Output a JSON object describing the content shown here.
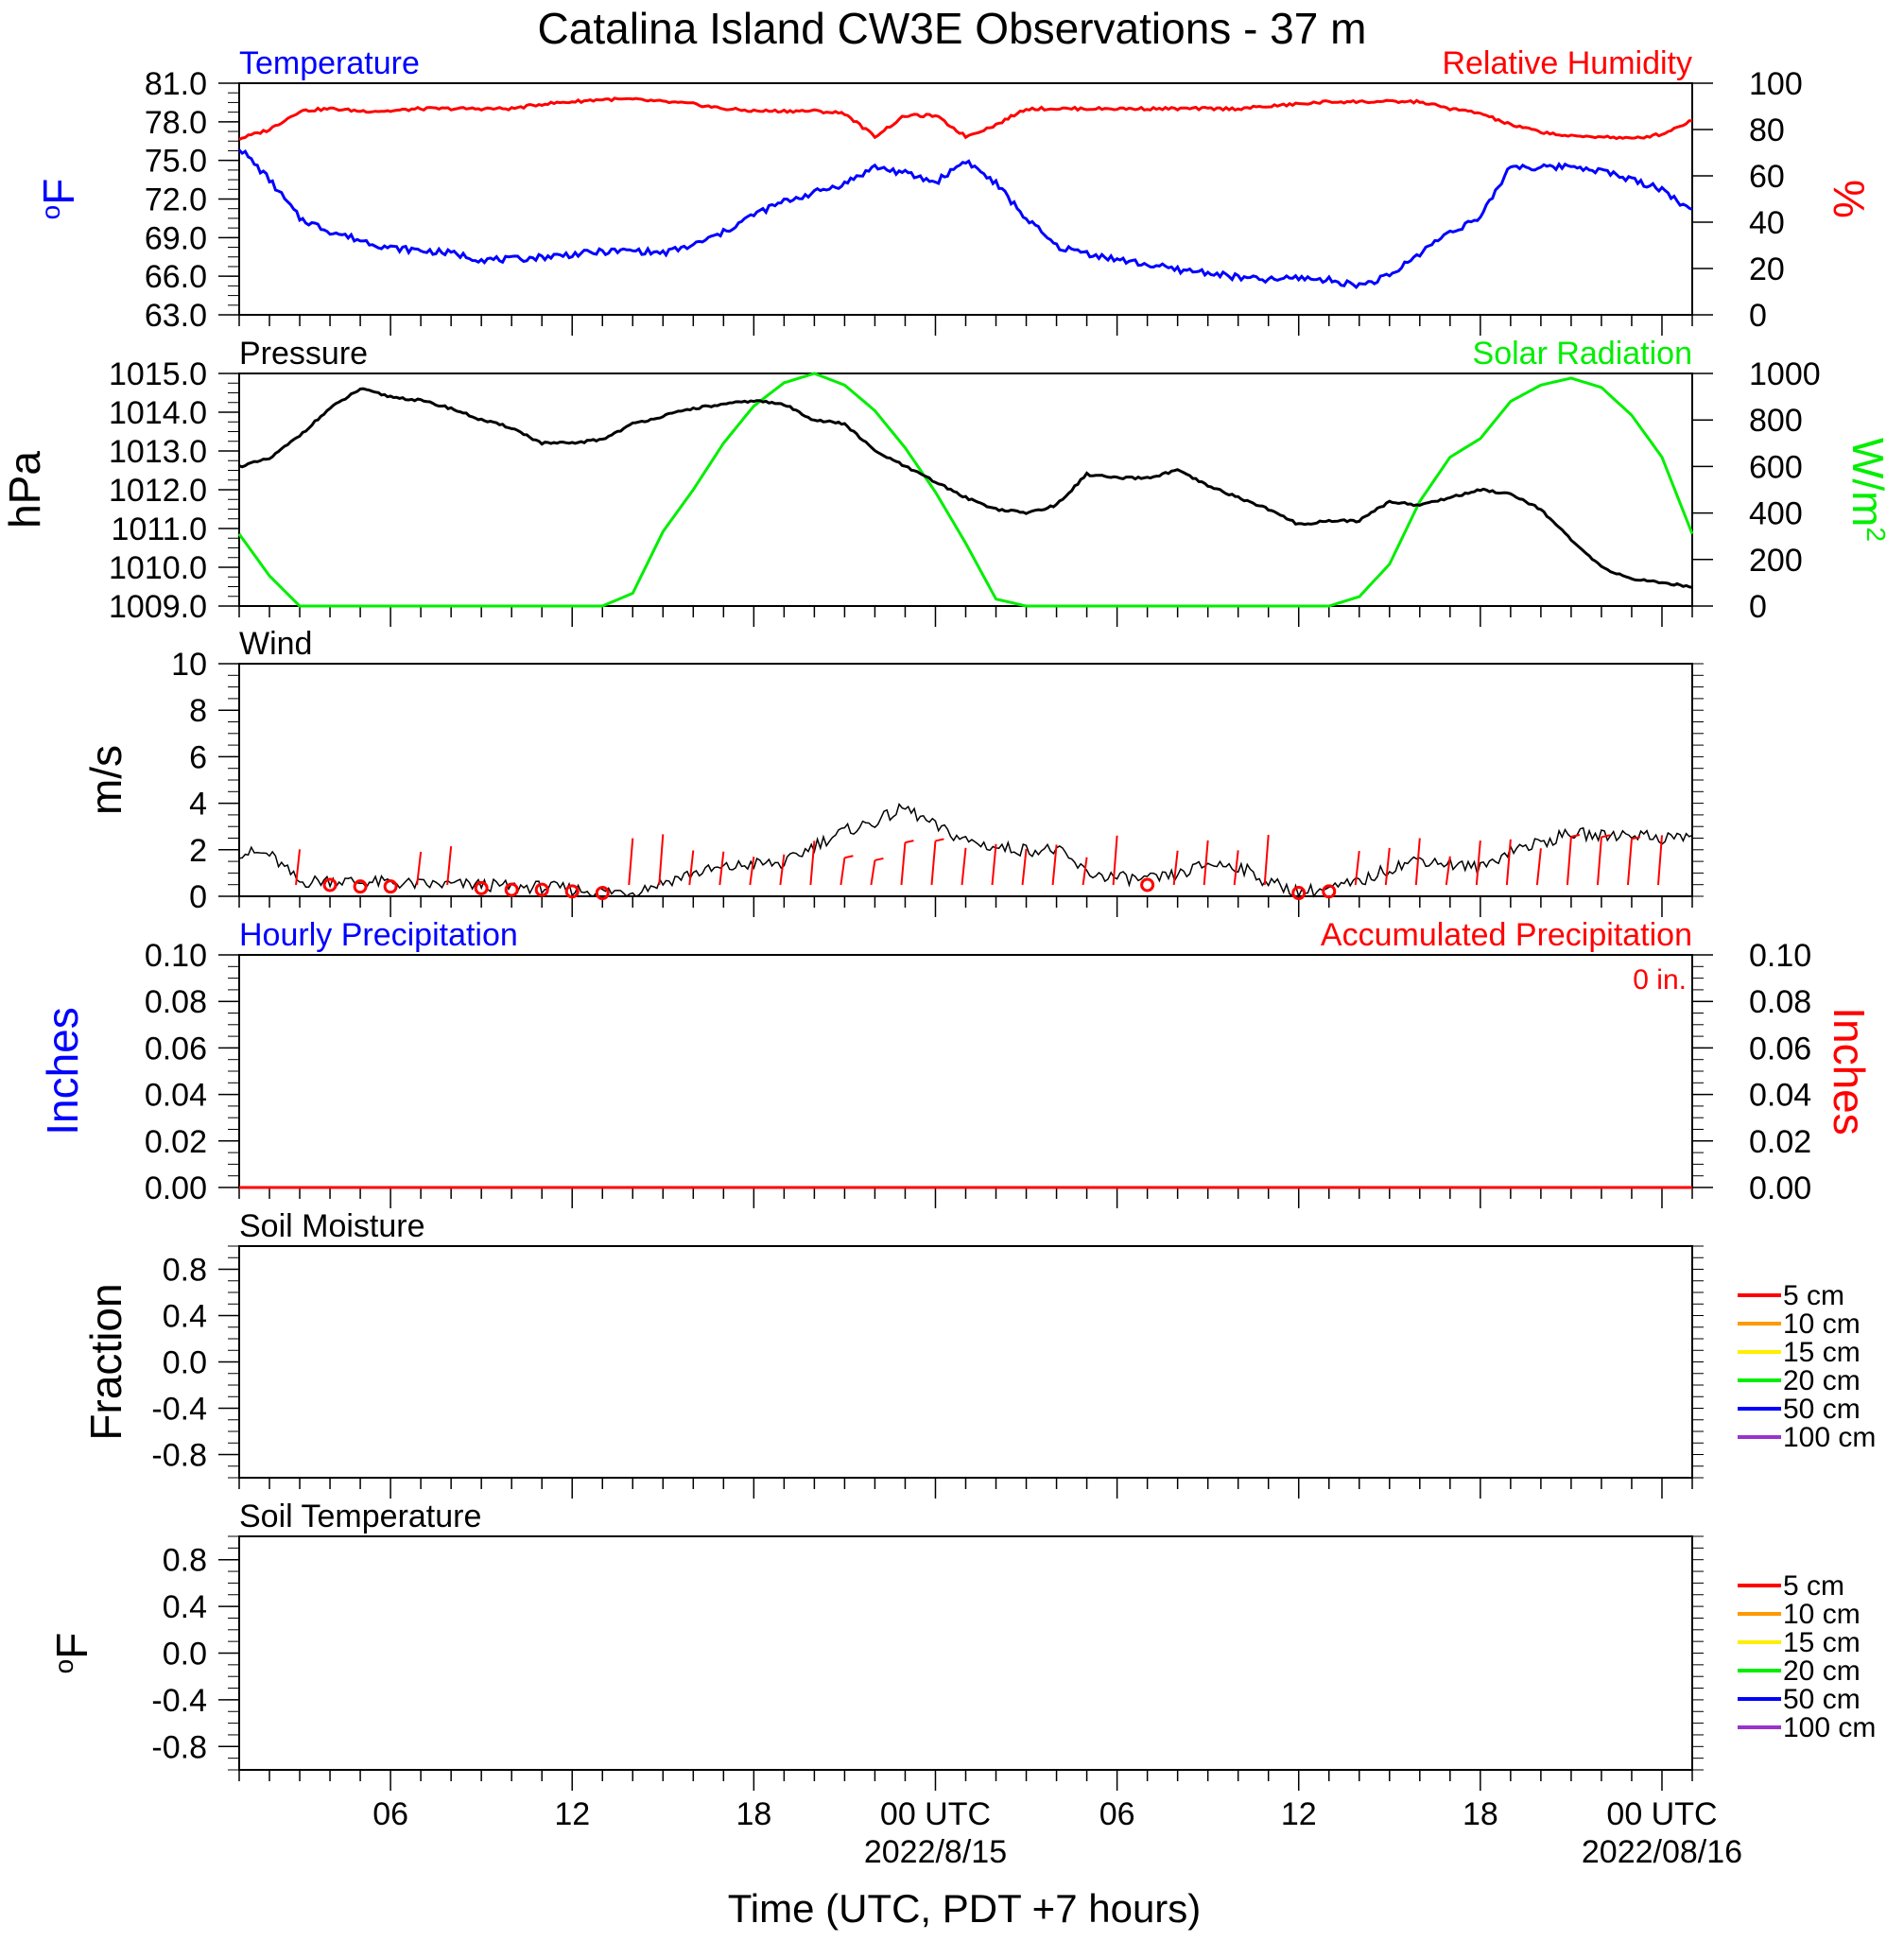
{
  "title": "Catalina Island CW3E Observations - 37 m",
  "colors": {
    "temperature": "#0000ff",
    "humidity": "#ff0000",
    "pressure": "#000000",
    "solar": "#00ee00",
    "wind": "#000000",
    "wind_barb": "#ff0000",
    "precip_hourly": "#0000ff",
    "precip_accum": "#ff0000"
  },
  "x_axis": {
    "title": "Time (UTC, PDT +7 hours)",
    "range_hours": [
      0,
      48
    ],
    "major_ticks": [
      {
        "hour": 5,
        "label": "06",
        "date": ""
      },
      {
        "hour": 11,
        "label": "12",
        "date": ""
      },
      {
        "hour": 17,
        "label": "18",
        "date": ""
      },
      {
        "hour": 23,
        "label": "00 UTC",
        "date": "2022/8/15"
      },
      {
        "hour": 29,
        "label": "06",
        "date": ""
      },
      {
        "hour": 35,
        "label": "12",
        "date": ""
      },
      {
        "hour": 41,
        "label": "18",
        "date": ""
      },
      {
        "hour": 47,
        "label": "00 UTC",
        "date": "2022/08/16"
      }
    ]
  },
  "chart_data": [
    {
      "type": "line",
      "panel": "temperature_humidity",
      "left_label": "Temperature",
      "right_label": "Relative Humidity",
      "left_axis_title": "oF",
      "right_axis_title": "%",
      "left_ylim": [
        63,
        81
      ],
      "left_ticks": [
        "81.0",
        "78.0",
        "75.0",
        "72.0",
        "69.0",
        "66.0",
        "63.0"
      ],
      "right_ylim": [
        0,
        100
      ],
      "right_ticks": [
        "100",
        "80",
        "60",
        "40",
        "20",
        "0"
      ],
      "x": [
        0,
        1,
        2,
        3,
        4,
        5,
        6,
        7,
        8,
        9,
        10,
        11,
        12,
        13,
        14,
        15,
        16,
        17,
        18,
        19,
        20,
        21,
        22,
        23,
        24,
        25,
        26,
        27,
        28,
        29,
        30,
        31,
        32,
        33,
        34,
        35,
        36,
        37,
        38,
        39,
        40,
        41,
        42,
        43,
        44,
        45,
        46,
        47,
        48
      ],
      "series": [
        {
          "name": "Temperature",
          "axis": "left",
          "values": [
            76.0,
            73.5,
            70.5,
            69.5,
            68.8,
            68.2,
            68.0,
            67.8,
            67.3,
            67.3,
            67.5,
            67.7,
            67.9,
            68.0,
            67.8,
            68.4,
            69.4,
            70.8,
            71.8,
            72.5,
            73.2,
            74.5,
            74.0,
            73.3,
            75.0,
            73.2,
            70.5,
            68.3,
            67.8,
            67.3,
            66.9,
            66.5,
            66.3,
            65.9,
            65.7,
            65.9,
            65.7,
            65.3,
            66.0,
            67.8,
            69.5,
            70.5,
            74.6,
            74.4,
            74.6,
            74.2,
            73.5,
            72.8,
            71.0
          ]
        },
        {
          "name": "Relative Humidity",
          "axis": "right",
          "values": [
            76,
            80,
            88,
            89,
            88,
            88,
            89,
            89,
            89,
            89,
            91,
            92,
            93,
            93,
            92,
            91,
            89,
            88,
            88,
            88,
            87,
            77,
            86,
            86,
            77,
            82,
            89,
            89,
            89,
            89,
            89,
            89,
            89,
            89,
            90,
            91,
            92,
            92,
            92,
            92,
            89,
            87,
            82,
            79,
            77,
            77,
            76,
            78,
            84
          ]
        }
      ]
    },
    {
      "type": "line",
      "panel": "pressure_solar",
      "left_label": "Pressure",
      "right_label": "Solar Radiation",
      "left_axis_title": "hPa",
      "right_axis_title": "W/m2",
      "left_ylim": [
        1009,
        1015
      ],
      "left_ticks": [
        "1015.0",
        "1014.0",
        "1013.0",
        "1012.0",
        "1011.0",
        "1010.0",
        "1009.0"
      ],
      "right_ylim": [
        0,
        1000
      ],
      "right_ticks": [
        "1000",
        "800",
        "600",
        "400",
        "200",
        "0"
      ],
      "x": [
        0,
        1,
        2,
        3,
        4,
        5,
        6,
        7,
        8,
        9,
        10,
        11,
        12,
        13,
        14,
        15,
        16,
        17,
        18,
        19,
        20,
        21,
        22,
        23,
        24,
        25,
        26,
        27,
        28,
        29,
        30,
        31,
        32,
        33,
        34,
        35,
        36,
        37,
        38,
        39,
        40,
        41,
        42,
        43,
        44,
        45,
        46,
        47,
        48
      ],
      "series": [
        {
          "name": "Pressure",
          "axis": "left",
          "values": [
            1012.6,
            1012.8,
            1013.4,
            1014.1,
            1014.6,
            1014.4,
            1014.3,
            1014.1,
            1013.8,
            1013.6,
            1013.2,
            1013.2,
            1013.3,
            1013.7,
            1013.9,
            1014.1,
            1014.2,
            1014.3,
            1014.2,
            1013.8,
            1013.7,
            1013.0,
            1012.6,
            1012.2,
            1011.8,
            1011.5,
            1011.4,
            1011.6,
            1012.4,
            1012.3,
            1012.3,
            1012.5,
            1012.1,
            1011.8,
            1011.5,
            1011.1,
            1011.2,
            1011.2,
            1011.7,
            1011.6,
            1011.8,
            1012.0,
            1011.9,
            1011.5,
            1010.7,
            1010.0,
            1009.7,
            1009.6,
            1009.5
          ]
        },
        {
          "name": "Solar Radiation",
          "axis": "right",
          "values": [
            310,
            130,
            0,
            0,
            0,
            0,
            0,
            0,
            0,
            0,
            0,
            0,
            0,
            55,
            320,
            500,
            700,
            860,
            960,
            1000,
            950,
            840,
            680,
            490,
            270,
            30,
            0,
            0,
            0,
            0,
            0,
            0,
            0,
            0,
            0,
            0,
            0,
            40,
            180,
            450,
            640,
            720,
            880,
            950,
            980,
            940,
            820,
            640,
            310
          ]
        }
      ]
    },
    {
      "type": "line",
      "panel": "wind",
      "left_label": "Wind",
      "left_axis_title": "m/s",
      "ylim": [
        0,
        10
      ],
      "ticks": [
        "10",
        "8",
        "6",
        "4",
        "2",
        "0"
      ],
      "x": [
        0,
        1,
        2,
        3,
        4,
        5,
        6,
        7,
        8,
        9,
        10,
        11,
        12,
        13,
        14,
        15,
        16,
        17,
        18,
        19,
        20,
        21,
        22,
        23,
        24,
        25,
        26,
        27,
        28,
        29,
        30,
        31,
        32,
        33,
        34,
        35,
        36,
        37,
        38,
        39,
        40,
        41,
        42,
        43,
        44,
        45,
        46,
        47,
        48
      ],
      "series": [
        {
          "name": "Wind speed",
          "values": [
            1.9,
            1.8,
            0.6,
            0.7,
            0.6,
            0.6,
            0.5,
            0.5,
            0.5,
            0.4,
            0.4,
            0.3,
            0.2,
            0.2,
            0.6,
            1.0,
            1.2,
            1.4,
            1.4,
            2.2,
            2.8,
            3.2,
            3.8,
            3.0,
            2.4,
            2.1,
            2.0,
            2.0,
            1.0,
            0.8,
            0.7,
            0.9,
            1.4,
            1.3,
            0.6,
            0.2,
            0.3,
            0.6,
            1.2,
            1.6,
            1.4,
            1.2,
            2.0,
            2.3,
            2.7,
            2.6,
            2.7,
            2.5,
            2.6
          ]
        }
      ],
      "barb_hours": [
        2,
        3,
        4,
        5,
        6,
        7,
        8,
        9,
        10,
        11,
        12,
        13,
        14,
        15,
        16,
        17,
        18,
        19,
        20,
        21,
        22,
        23,
        24,
        25,
        26,
        27,
        28,
        29,
        30,
        31,
        32,
        33,
        34,
        35,
        36,
        37,
        38,
        39,
        40,
        41,
        42,
        43,
        44,
        45,
        46,
        47
      ],
      "calm_hours": [
        3,
        4,
        5,
        8,
        9,
        10,
        11,
        12,
        30,
        35,
        36
      ]
    },
    {
      "type": "line",
      "panel": "precipitation",
      "left_label": "Hourly Precipitation",
      "right_label": "Accumulated Precipitation",
      "accum_total": "0 in.",
      "left_axis_title": "Inches",
      "right_axis_title": "Inches",
      "ylim": [
        0,
        0.1
      ],
      "ticks": [
        "0.10",
        "0.08",
        "0.06",
        "0.04",
        "0.02",
        "0.00"
      ],
      "series": [
        {
          "name": "Hourly Precipitation",
          "values": [
            0,
            0
          ]
        },
        {
          "name": "Accumulated Precipitation",
          "values": [
            0,
            0
          ]
        }
      ]
    },
    {
      "type": "line",
      "panel": "soil_moisture",
      "left_label": "Soil Moisture",
      "left_axis_title": "Fraction",
      "ylim": [
        -1,
        1
      ],
      "ticks": [
        "0.8",
        "0.4",
        "0.0",
        "-0.4",
        "-0.8"
      ],
      "series": [],
      "legend": [
        {
          "label": "5 cm",
          "color": "#ff0000"
        },
        {
          "label": "10 cm",
          "color": "#ff9900"
        },
        {
          "label": "15 cm",
          "color": "#ffee00"
        },
        {
          "label": "20 cm",
          "color": "#00ee00"
        },
        {
          "label": "50 cm",
          "color": "#0000ff"
        },
        {
          "label": "100 cm",
          "color": "#9933cc"
        }
      ]
    },
    {
      "type": "line",
      "panel": "soil_temperature",
      "left_label": "Soil Temperature",
      "left_axis_title": "oF",
      "ylim": [
        -1,
        1
      ],
      "ticks": [
        "0.8",
        "0.4",
        "0.0",
        "-0.4",
        "-0.8"
      ],
      "series": [],
      "legend": [
        {
          "label": "5 cm",
          "color": "#ff0000"
        },
        {
          "label": "10 cm",
          "color": "#ff9900"
        },
        {
          "label": "15 cm",
          "color": "#ffee00"
        },
        {
          "label": "20 cm",
          "color": "#00ee00"
        },
        {
          "label": "50 cm",
          "color": "#0000ff"
        },
        {
          "label": "100 cm",
          "color": "#9933cc"
        }
      ]
    }
  ]
}
